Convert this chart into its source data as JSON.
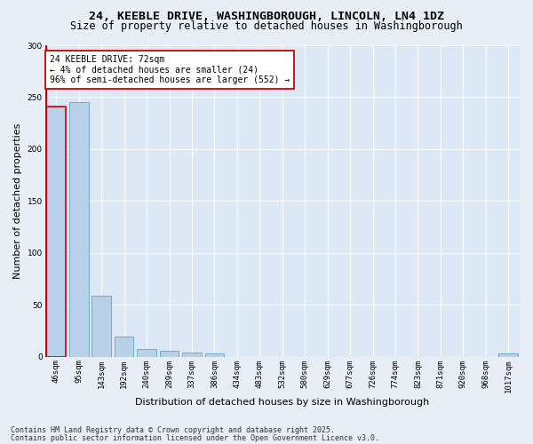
{
  "title_line1": "24, KEEBLE DRIVE, WASHINGBOROUGH, LINCOLN, LN4 1DZ",
  "title_line2": "Size of property relative to detached houses in Washingborough",
  "xlabel": "Distribution of detached houses by size in Washingborough",
  "ylabel": "Number of detached properties",
  "footnote1": "Contains HM Land Registry data © Crown copyright and database right 2025.",
  "footnote2": "Contains public sector information licensed under the Open Government Licence v3.0.",
  "annotation_title": "24 KEEBLE DRIVE: 72sqm",
  "annotation_line2": "← 4% of detached houses are smaller (24)",
  "annotation_line3": "96% of semi-detached houses are larger (552) →",
  "bar_labels": [
    "46sqm",
    "95sqm",
    "143sqm",
    "192sqm",
    "240sqm",
    "289sqm",
    "337sqm",
    "386sqm",
    "434sqm",
    "483sqm",
    "532sqm",
    "580sqm",
    "629sqm",
    "677sqm",
    "726sqm",
    "774sqm",
    "823sqm",
    "871sqm",
    "920sqm",
    "968sqm",
    "1017sqm"
  ],
  "bar_values": [
    241,
    245,
    59,
    19,
    7,
    6,
    4,
    3,
    0,
    0,
    0,
    0,
    0,
    0,
    0,
    0,
    0,
    0,
    0,
    0,
    3
  ],
  "bar_color": "#b8d0e8",
  "bar_edge_color": "#6aaed6",
  "highlight_bar_edge_color": "#cc0000",
  "vline_color": "#cc0000",
  "annotation_box_color": "#ffffff",
  "annotation_box_edge_color": "#cc0000",
  "ylim": [
    0,
    300
  ],
  "yticks": [
    0,
    50,
    100,
    150,
    200,
    250,
    300
  ],
  "fig_bg_color": "#e8eef5",
  "plot_bg_color": "#dce8f5",
  "title_fontsize": 9.5,
  "subtitle_fontsize": 8.5,
  "axis_label_fontsize": 8,
  "tick_fontsize": 6.5,
  "annotation_fontsize": 7,
  "footnote_fontsize": 6
}
